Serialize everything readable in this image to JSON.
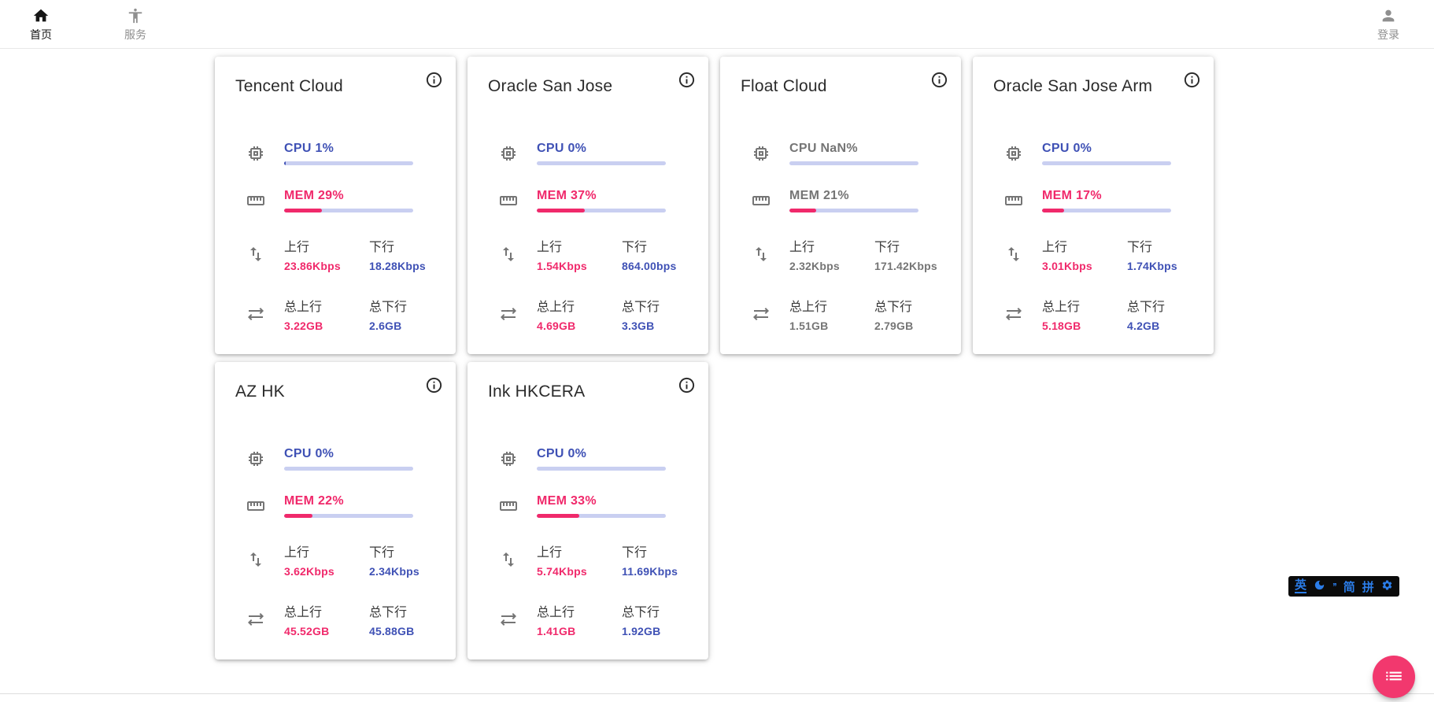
{
  "nav": {
    "home": {
      "label": "首页"
    },
    "services": {
      "label": "服务"
    },
    "login": {
      "label": "登录"
    }
  },
  "metric_labels": {
    "cpu": "CPU",
    "mem": "MEM",
    "up": "上行",
    "down": "下行",
    "total_up": "总上行",
    "total_down": "总下行"
  },
  "servers": [
    {
      "name": "Tencent Cloud",
      "cpu": "1%",
      "cpu_pct": 1,
      "mem": "29%",
      "mem_pct": 29,
      "up": "23.86Kbps",
      "down": "18.28Kbps",
      "total_up": "3.22GB",
      "total_down": "2.6GB",
      "offline": false
    },
    {
      "name": "Oracle San Jose",
      "cpu": "0%",
      "cpu_pct": 0,
      "mem": "37%",
      "mem_pct": 37,
      "up": "1.54Kbps",
      "down": "864.00bps",
      "total_up": "4.69GB",
      "total_down": "3.3GB",
      "offline": false
    },
    {
      "name": "Float Cloud",
      "cpu": "NaN%",
      "cpu_pct": 0,
      "mem": "21%",
      "mem_pct": 21,
      "up": "2.32Kbps",
      "down": "171.42Kbps",
      "total_up": "1.51GB",
      "total_down": "2.79GB",
      "offline": true
    },
    {
      "name": "Oracle San Jose Arm",
      "cpu": "0%",
      "cpu_pct": 0,
      "mem": "17%",
      "mem_pct": 17,
      "up": "3.01Kbps",
      "down": "1.74Kbps",
      "total_up": "5.18GB",
      "total_down": "4.2GB",
      "offline": false
    },
    {
      "name": "AZ HK",
      "cpu": "0%",
      "cpu_pct": 0,
      "mem": "22%",
      "mem_pct": 22,
      "up": "3.62Kbps",
      "down": "2.34Kbps",
      "total_up": "45.52GB",
      "total_down": "45.88GB",
      "offline": false
    },
    {
      "name": "Ink HKCERA",
      "cpu": "0%",
      "cpu_pct": 0,
      "mem": "33%",
      "mem_pct": 33,
      "up": "5.74Kbps",
      "down": "11.69Kbps",
      "total_up": "1.41GB",
      "total_down": "1.92GB",
      "offline": false
    }
  ],
  "ime_bar": {
    "en": "英",
    "punct": "’’",
    "simplified": "简",
    "pinyin": "拼"
  },
  "colors": {
    "accent_blue": "#3f51b5",
    "accent_pink": "#f0296b",
    "bar_track": "#c9cff1",
    "offline_gray": "#757575",
    "fab_pink": "#f2386e",
    "ime_blue": "#2b7de9"
  }
}
